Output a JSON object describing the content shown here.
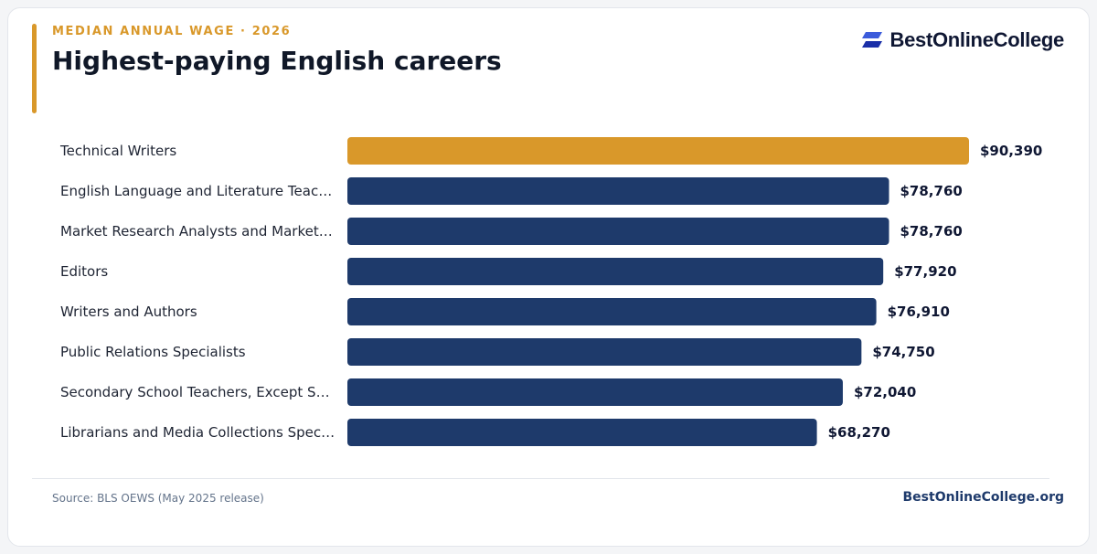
{
  "header": {
    "eyebrow": "MEDIAN ANNUAL WAGE · 2026",
    "title": "Highest-paying English careers"
  },
  "brand": {
    "name": "BestOnlineCollege",
    "icon": "brand-logo-icon"
  },
  "colors": {
    "highlight": "#d9982a",
    "bar": "#1e3a6b",
    "accent": "#d9982a"
  },
  "chart_data": {
    "type": "bar",
    "orientation": "horizontal",
    "categories": [
      "Technical Writers",
      "English Language and Literature Teac…",
      "Market Research Analysts and Market…",
      "Editors",
      "Writers and Authors",
      "Public Relations Specialists",
      "Secondary School Teachers, Except S…",
      "Librarians and Media Collections Spec…"
    ],
    "values": [
      90390,
      78760,
      78760,
      77920,
      76910,
      74750,
      72040,
      68270
    ],
    "value_labels": [
      "$90,390",
      "$78,760",
      "$78,760",
      "$77,920",
      "$76,910",
      "$74,750",
      "$72,040",
      "$68,270"
    ],
    "highlight_index": 0,
    "xlim": [
      0,
      90390
    ],
    "grid": false,
    "legend": "none"
  },
  "footer": {
    "source": "Source: BLS OEWS (May 2025 release)",
    "site": "BestOnlineCollege.org"
  }
}
